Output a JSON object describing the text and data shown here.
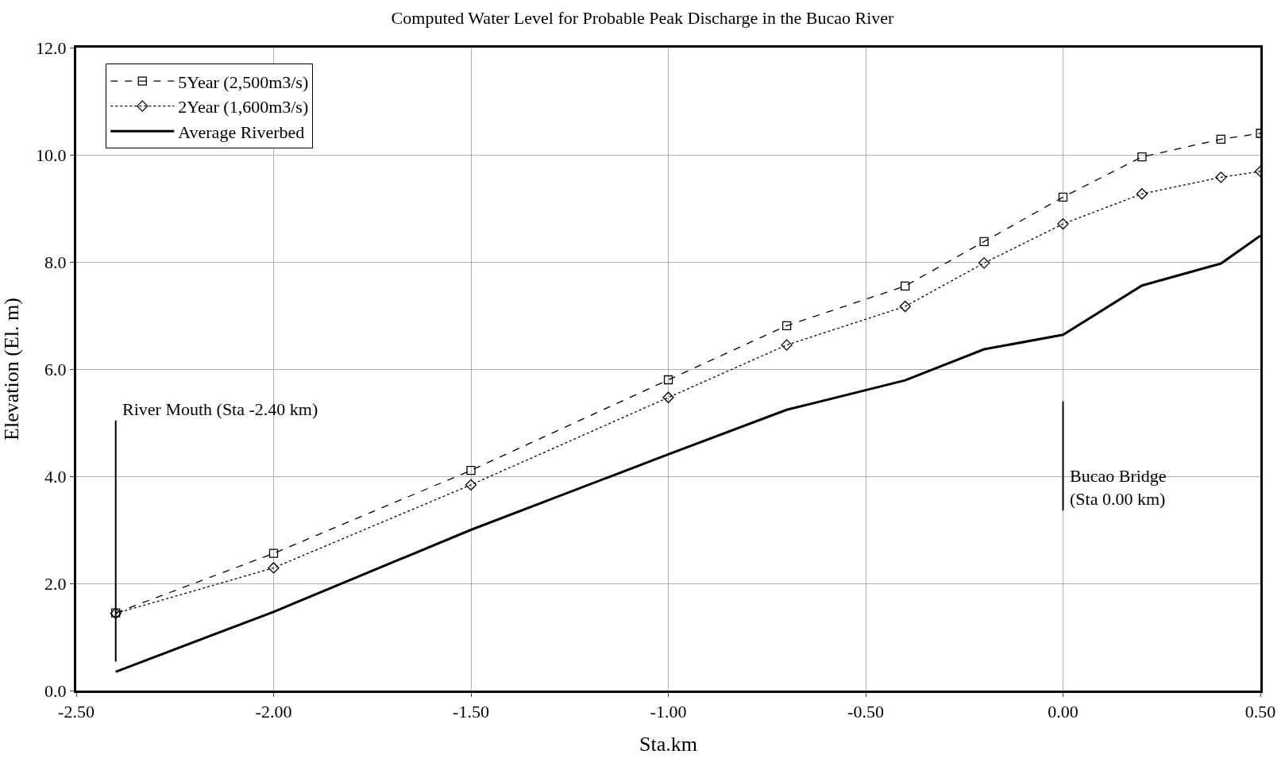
{
  "chart_data": {
    "type": "line",
    "title": "Computed Water Level for Probable Peak Discharge in the Bucao River",
    "xlabel": "Sta.km",
    "ylabel": "Elevation (El. m)",
    "x": [
      -2.4,
      -2.0,
      -1.5,
      -1.0,
      -0.7,
      -0.4,
      -0.2,
      0.0,
      0.2,
      0.4,
      0.5
    ],
    "series": [
      {
        "name": "5Year (2,500m3/s)",
        "color": "#000000",
        "values": [
          1.45,
          2.56,
          4.11,
          5.8,
          6.81,
          7.55,
          8.38,
          9.21,
          9.96,
          10.29,
          10.4
        ],
        "marker": "square",
        "line_style": "dashed"
      },
      {
        "name": "2Year (1,600m3/s)",
        "color": "#000000",
        "values": [
          1.44,
          2.29,
          3.84,
          5.47,
          6.45,
          7.17,
          7.98,
          8.71,
          9.27,
          9.58,
          9.69
        ],
        "marker": "diamond",
        "line_style": "dotted"
      },
      {
        "name": "Average Riverbed",
        "color": "#000000",
        "values": [
          0.35,
          1.47,
          3.0,
          4.41,
          5.24,
          5.79,
          6.37,
          6.64,
          7.56,
          7.97,
          8.49
        ],
        "marker": "none",
        "line_style": "solid"
      }
    ],
    "xlim": [
      -2.5,
      0.5
    ],
    "xticks": [
      {
        "value": -2.5,
        "label": "-2.50"
      },
      {
        "value": -2.0,
        "label": "-2.00"
      },
      {
        "value": -1.5,
        "label": "-1.50"
      },
      {
        "value": -1.0,
        "label": "-1.00"
      },
      {
        "value": -0.5,
        "label": "-0.50"
      },
      {
        "value": 0.0,
        "label": "0.00"
      },
      {
        "value": 0.5,
        "label": "0.50"
      }
    ],
    "ylim": [
      0,
      12
    ],
    "yticks": [
      {
        "value": 0,
        "label": "0.0"
      },
      {
        "value": 2,
        "label": "2.0"
      },
      {
        "value": 4,
        "label": "4.0"
      },
      {
        "value": 6,
        "label": "6.0"
      },
      {
        "value": 8,
        "label": "8.0"
      },
      {
        "value": 10,
        "label": "10.0"
      },
      {
        "value": 12,
        "label": "12.0"
      }
    ],
    "grid": true,
    "legend": "top left",
    "ref_lines": [
      {
        "axis": "x",
        "value": -2.4,
        "label": "River Mouth (Sta -2.40 km)"
      },
      {
        "axis": "x",
        "value": 0.0,
        "label": "Bucao Bridge\n(Sta 0.00 km)"
      }
    ]
  }
}
